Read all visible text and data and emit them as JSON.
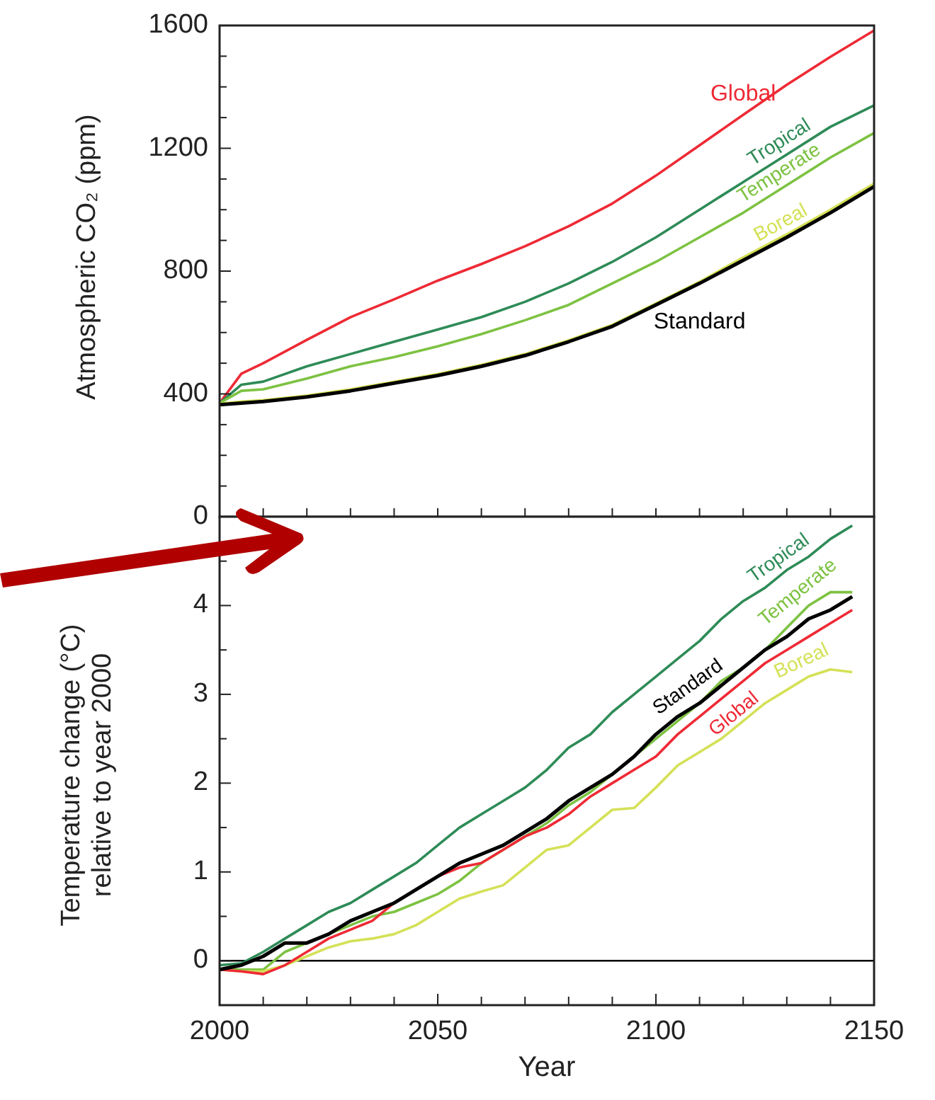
{
  "chart_data": [
    {
      "type": "line",
      "ylabel": "Atmospheric CO₂ (ppm)",
      "x": [
        2000,
        2005,
        2010,
        2020,
        2030,
        2040,
        2050,
        2060,
        2070,
        2080,
        2090,
        2100,
        2110,
        2120,
        2130,
        2140,
        2150
      ],
      "xlim": [
        2000,
        2150
      ],
      "xticks": [
        {
          "value": 2000,
          "label": null
        },
        {
          "value": 2010,
          "label": null
        },
        {
          "value": 2020,
          "label": null
        },
        {
          "value": 2030,
          "label": null
        },
        {
          "value": 2040,
          "label": null
        },
        {
          "value": 2050,
          "label": null
        },
        {
          "value": 2060,
          "label": null
        },
        {
          "value": 2070,
          "label": null
        },
        {
          "value": 2080,
          "label": null
        },
        {
          "value": 2090,
          "label": null
        },
        {
          "value": 2100,
          "label": null
        },
        {
          "value": 2110,
          "label": null
        },
        {
          "value": 2120,
          "label": null
        },
        {
          "value": 2130,
          "label": null
        },
        {
          "value": 2140,
          "label": null
        },
        {
          "value": 2150,
          "label": null
        }
      ],
      "ylim": [
        0,
        1600
      ],
      "yticks": [
        0,
        {
          "value": 100,
          "label": null
        },
        {
          "value": 200,
          "label": null
        },
        {
          "value": 300,
          "label": null
        },
        400,
        {
          "value": 500,
          "label": null
        },
        {
          "value": 600,
          "label": null
        },
        {
          "value": 700,
          "label": null
        },
        800,
        {
          "value": 900,
          "label": null
        },
        {
          "value": 1000,
          "label": null
        },
        {
          "value": 1100,
          "label": null
        },
        1200,
        {
          "value": 1300,
          "label": null
        },
        {
          "value": 1400,
          "label": null
        },
        {
          "value": 1500,
          "label": null
        },
        1600
      ],
      "tick_labels": "y",
      "grid": false,
      "marker": "none",
      "line_style": "solid",
      "series": [
        {
          "name": "Global",
          "color": "#ee2a35",
          "values": [
            370,
            466,
            500,
            576,
            650,
            708,
            769,
            823,
            881,
            946,
            1020,
            1111,
            1210,
            1309,
            1407,
            1498,
            1584
          ]
        },
        {
          "name": "Tropical",
          "color": "#2e8b57",
          "values": [
            370,
            430,
            440,
            490,
            530,
            570,
            610,
            650,
            700,
            760,
            830,
            910,
            1000,
            1090,
            1180,
            1270,
            1340
          ]
        },
        {
          "name": "Temperate",
          "color": "#7dc242",
          "values": [
            370,
            410,
            415,
            450,
            490,
            520,
            555,
            595,
            640,
            690,
            760,
            830,
            910,
            990,
            1080,
            1170,
            1250
          ]
        },
        {
          "name": "Boreal",
          "color": "#d4e157",
          "values": [
            368,
            375,
            380,
            395,
            415,
            440,
            465,
            495,
            530,
            575,
            625,
            695,
            765,
            845,
            920,
            1000,
            1085
          ]
        },
        {
          "name": "Standard",
          "color": "#000000",
          "values": [
            365,
            370,
            375,
            390,
            410,
            435,
            460,
            490,
            525,
            570,
            620,
            690,
            760,
            835,
            910,
            990,
            1075
          ]
        }
      ]
    },
    {
      "type": "line",
      "xlabel": "Year",
      "ylabel": "Temperature change (°C)\nrelative to year 2000",
      "x": [
        2000,
        2005,
        2010,
        2015,
        2020,
        2025,
        2030,
        2035,
        2040,
        2045,
        2050,
        2055,
        2060,
        2065,
        2070,
        2075,
        2080,
        2085,
        2090,
        2095,
        2100,
        2105,
        2110,
        2115,
        2120,
        2125,
        2130,
        2135,
        2140,
        2145
      ],
      "xlim": [
        2000,
        2150
      ],
      "xticks": [
        2000,
        {
          "value": 2010,
          "label": null
        },
        {
          "value": 2020,
          "label": null
        },
        {
          "value": 2030,
          "label": null
        },
        {
          "value": 2040,
          "label": null
        },
        2050,
        {
          "value": 2060,
          "label": null
        },
        {
          "value": 2070,
          "label": null
        },
        {
          "value": 2080,
          "label": null
        },
        {
          "value": 2090,
          "label": null
        },
        2100,
        {
          "value": 2110,
          "label": null
        },
        {
          "value": 2120,
          "label": null
        },
        {
          "value": 2130,
          "label": null
        },
        {
          "value": 2140,
          "label": null
        },
        2150
      ],
      "ylim": [
        -0.5,
        5
      ],
      "yticks": [
        {
          "value": -0.5,
          "label": null
        },
        0,
        {
          "value": 0.5,
          "label": null
        },
        1,
        {
          "value": 1.5,
          "label": null
        },
        2,
        {
          "value": 2.5,
          "label": null
        },
        3,
        {
          "value": 3.5,
          "label": null
        },
        4,
        {
          "value": 4.5,
          "label": null
        }
      ],
      "grid": false,
      "marker": "none",
      "line_style": "solid",
      "ref_lines": [
        {
          "axis": "y",
          "value": 0,
          "color": "#000000"
        }
      ],
      "series": [
        {
          "name": "Tropical",
          "color": "#2e8b57",
          "values": [
            -0.05,
            -0.03,
            0.1,
            0.25,
            0.4,
            0.55,
            0.65,
            0.8,
            0.95,
            1.1,
            1.3,
            1.5,
            1.65,
            1.8,
            1.95,
            2.15,
            2.4,
            2.55,
            2.8,
            3.0,
            3.2,
            3.4,
            3.6,
            3.85,
            4.05,
            4.2,
            4.4,
            4.55,
            4.75,
            4.9
          ]
        },
        {
          "name": "Temperate",
          "color": "#7dc242",
          "values": [
            -0.1,
            -0.1,
            -0.1,
            0.1,
            0.2,
            0.3,
            0.4,
            0.5,
            0.55,
            0.65,
            0.75,
            0.9,
            1.1,
            1.25,
            1.4,
            1.55,
            1.75,
            1.9,
            2.1,
            2.3,
            2.5,
            2.7,
            2.9,
            3.15,
            3.3,
            3.5,
            3.75,
            4.0,
            4.15,
            4.15
          ]
        },
        {
          "name": "Boreal",
          "color": "#d4e157",
          "values": [
            -0.1,
            -0.12,
            -0.12,
            -0.05,
            0.05,
            0.15,
            0.22,
            0.25,
            0.3,
            0.4,
            0.55,
            0.7,
            0.78,
            0.85,
            1.05,
            1.25,
            1.3,
            1.5,
            1.7,
            1.72,
            1.95,
            2.2,
            2.35,
            2.5,
            2.7,
            2.9,
            3.05,
            3.2,
            3.28,
            3.25
          ]
        },
        {
          "name": "Global",
          "color": "#ee2a35",
          "values": [
            -0.1,
            -0.12,
            -0.15,
            -0.05,
            0.1,
            0.25,
            0.35,
            0.45,
            0.65,
            0.8,
            0.95,
            1.05,
            1.1,
            1.25,
            1.4,
            1.5,
            1.65,
            1.85,
            2.0,
            2.15,
            2.3,
            2.55,
            2.75,
            2.95,
            3.15,
            3.35,
            3.5,
            3.65,
            3.8,
            3.95
          ]
        },
        {
          "name": "Standard",
          "color": "#000000",
          "values": [
            -0.1,
            -0.05,
            0.05,
            0.2,
            0.2,
            0.3,
            0.45,
            0.55,
            0.65,
            0.8,
            0.95,
            1.1,
            1.2,
            1.3,
            1.45,
            1.6,
            1.8,
            1.95,
            2.1,
            2.3,
            2.55,
            2.75,
            2.9,
            3.1,
            3.3,
            3.5,
            3.65,
            3.85,
            3.95,
            4.1
          ]
        }
      ]
    }
  ]
}
